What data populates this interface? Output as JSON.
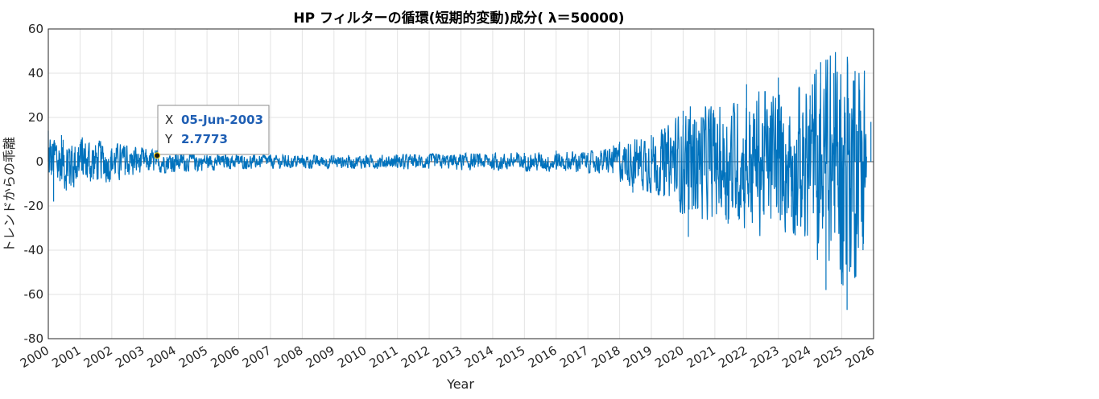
{
  "chart_data": {
    "type": "line",
    "title": "HP フィルターの循環(短期的変動)成分( λ＝50000)",
    "xlabel": "Year",
    "ylabel": "トレンドからの乖離",
    "xlim": [
      "2000-01-01",
      "2026-01-01"
    ],
    "ylim": [
      -80,
      60
    ],
    "xticks": [
      "2000",
      "2001",
      "2002",
      "2003",
      "2004",
      "2005",
      "2006",
      "2007",
      "2008",
      "2009",
      "2010",
      "2011",
      "2012",
      "2013",
      "2014",
      "2015",
      "2016",
      "2017",
      "2018",
      "2019",
      "2020",
      "2021",
      "2022",
      "2023",
      "2024",
      "2025",
      "2026"
    ],
    "yticks": [
      -80,
      -60,
      -40,
      -20,
      0,
      20,
      40,
      60
    ],
    "grid": true,
    "line_color": "#0072BD",
    "series": [
      {
        "x": [
          "2000-01",
          "2000-03",
          "2000-06",
          "2000-09",
          "2001-01",
          "2001-06",
          "2002-01",
          "2002-06",
          "2003-01",
          "2003-06",
          "2004-01",
          "2005-01",
          "2006-01",
          "2007-01",
          "2008-01",
          "2009-01",
          "2010-01",
          "2011-01",
          "2012-01",
          "2013-01",
          "2014-01",
          "2015-01",
          "2016-01",
          "2017-01",
          "2018-01",
          "2018-06",
          "2019-01",
          "2019-06",
          "2020-01",
          "2020-03",
          "2020-06",
          "2021-01",
          "2021-06",
          "2022-01",
          "2022-06",
          "2023-01",
          "2023-06",
          "2024-01",
          "2024-05",
          "2024-07",
          "2024-10",
          "2025-01",
          "2025-03",
          "2025-06",
          "2025-09",
          "2025-12"
        ],
        "y": [
          14,
          -18,
          12,
          -10,
          8,
          -8,
          6,
          -6,
          5,
          2.8,
          3,
          3,
          2.5,
          2.5,
          3,
          3,
          2.5,
          3,
          3,
          3,
          3.5,
          4,
          5,
          4,
          9,
          -14,
          12,
          -15,
          23,
          -34,
          18,
          20,
          -28,
          35,
          -26,
          38,
          -25,
          30,
          45,
          -58,
          40,
          -50,
          -67,
          41,
          -40,
          18
        ],
        "amplitude_envelope": [
          [
            "2000-01",
            14
          ],
          [
            "2001-06",
            10
          ],
          [
            "2003-06",
            5
          ],
          [
            "2006-01",
            3
          ],
          [
            "2010-01",
            3
          ],
          [
            "2015-01",
            4
          ],
          [
            "2017-06",
            5
          ],
          [
            "2018-06",
            11
          ],
          [
            "2019-06",
            15
          ],
          [
            "2020-03",
            25
          ],
          [
            "2021-06",
            25
          ],
          [
            "2022-06",
            32
          ],
          [
            "2023-06",
            30
          ],
          [
            "2024-06",
            45
          ],
          [
            "2025-03",
            55
          ],
          [
            "2025-12",
            40
          ]
        ]
      }
    ],
    "datatip": {
      "x_label": "X",
      "x_value": "05-Jun-2003",
      "y_label": "Y",
      "y_value": "2.7773",
      "x": "2003-06-05",
      "y": 2.7773
    }
  }
}
